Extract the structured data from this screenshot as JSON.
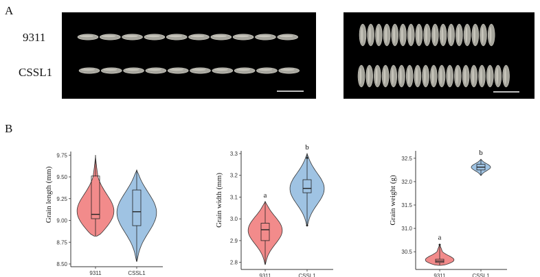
{
  "panel_a": {
    "letter": "A",
    "row_labels": [
      "9311",
      "CSSL1"
    ]
  },
  "panel_b": {
    "letter": "B"
  },
  "colors": {
    "9311": "#f28b8b",
    "CSSL1": "#9fc3e3",
    "outline": "#333333"
  },
  "chart_data": [
    {
      "type": "violin",
      "ylabel": "Grain length (mm)",
      "categories": [
        "9311",
        "CSSL1"
      ],
      "yticks": [
        "8.50",
        "8.75",
        "9.00",
        "9.25",
        "9.50",
        "9.75"
      ],
      "ylim": [
        8.5,
        9.76
      ],
      "significance": [
        "",
        ""
      ],
      "series": [
        {
          "category": "9311",
          "min": 8.82,
          "q1": 9.02,
          "median": 9.07,
          "q3": 9.51,
          "max": 9.75,
          "outliers": []
        },
        {
          "category": "CSSL1",
          "min": 8.53,
          "q1": 8.94,
          "median": 9.1,
          "q3": 9.35,
          "max": 9.58,
          "outliers": []
        }
      ]
    },
    {
      "type": "violin",
      "ylabel": "Grain width (mm)",
      "categories": [
        "9311",
        "CSSL1"
      ],
      "yticks": [
        "2.8",
        "2.9",
        "3.0",
        "3.1",
        "3.2",
        "3.3"
      ],
      "ylim": [
        2.78,
        3.3
      ],
      "significance": [
        "a",
        "b"
      ],
      "series": [
        {
          "category": "9311",
          "min": 2.79,
          "q1": 2.9,
          "median": 2.95,
          "q3": 2.98,
          "max": 3.08,
          "outliers": []
        },
        {
          "category": "CSSL1",
          "min": 2.97,
          "q1": 3.12,
          "median": 3.14,
          "q3": 3.18,
          "max": 3.3,
          "outliers": [
            3.28,
            2.97
          ]
        }
      ]
    },
    {
      "type": "violin",
      "ylabel": "Grain weight (g)",
      "categories": [
        "9311",
        "CSSL1"
      ],
      "yticks": [
        "30.5",
        "31.0",
        "31.5",
        "32.0",
        "32.5"
      ],
      "ylim": [
        30.18,
        32.6
      ],
      "significance": [
        "a",
        "b"
      ],
      "series": [
        {
          "category": "9311",
          "min": 30.21,
          "q1": 30.27,
          "median": 30.3,
          "q3": 30.34,
          "max": 30.67,
          "outliers": [
            30.65
          ]
        },
        {
          "category": "CSSL1",
          "min": 32.13,
          "q1": 32.25,
          "median": 32.31,
          "q3": 32.37,
          "max": 32.48,
          "outliers": []
        }
      ]
    }
  ]
}
